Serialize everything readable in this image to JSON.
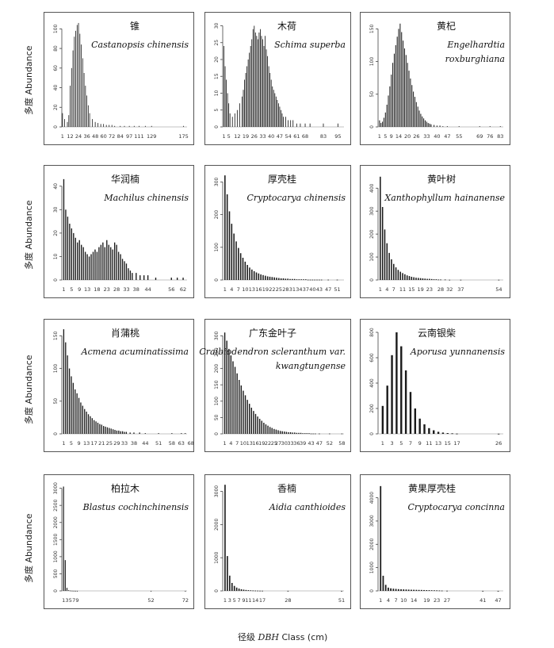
{
  "figure": {
    "ylabel": "多度 Abundance",
    "xlabel_prefix": "径级",
    "xlabel_italic": "DBH",
    "xlabel_suffix": "Class (cm)"
  },
  "chart_data": [
    {
      "type": "bar",
      "cn": "锥",
      "latin": [
        "Castanopsis chinensis"
      ],
      "ylim": [
        0,
        110
      ],
      "yticks": [
        0,
        20,
        40,
        60,
        80,
        100
      ],
      "xlim": [
        0,
        180
      ],
      "xticks": [
        1,
        12,
        24,
        36,
        48,
        60,
        72,
        84,
        97,
        111,
        129,
        175
      ],
      "x": [
        1,
        4,
        8,
        10,
        12,
        14,
        16,
        18,
        20,
        22,
        24,
        26,
        28,
        30,
        32,
        34,
        36,
        38,
        40,
        44,
        48,
        52,
        56,
        60,
        64,
        68,
        72,
        76,
        84,
        90,
        97,
        104,
        111,
        120,
        129,
        175
      ],
      "values": [
        14,
        8,
        5,
        12,
        42,
        60,
        78,
        92,
        98,
        104,
        106,
        95,
        84,
        70,
        55,
        42,
        32,
        22,
        14,
        8,
        5,
        4,
        3,
        3,
        2,
        2,
        2,
        1,
        1,
        1,
        1,
        1,
        1,
        1,
        1,
        1
      ]
    },
    {
      "type": "bar",
      "cn": "木荷",
      "latin": [
        "Schima superba"
      ],
      "ylim": [
        0,
        32
      ],
      "yticks": [
        0,
        5,
        10,
        15,
        20,
        25,
        30
      ],
      "xlim": [
        0,
        100
      ],
      "xticks": [
        1,
        5,
        12,
        19,
        26,
        33,
        40,
        47,
        54,
        61,
        68,
        83,
        95
      ],
      "x": [
        1,
        2,
        3,
        4,
        5,
        6,
        8,
        10,
        12,
        14,
        16,
        17,
        18,
        19,
        20,
        21,
        22,
        23,
        24,
        25,
        26,
        27,
        28,
        29,
        30,
        31,
        32,
        33,
        34,
        35,
        36,
        37,
        38,
        39,
        40,
        41,
        42,
        43,
        44,
        45,
        46,
        47,
        48,
        49,
        50,
        52,
        54,
        56,
        58,
        61,
        64,
        68,
        72,
        83,
        95
      ],
      "values": [
        24,
        18,
        14,
        10,
        7,
        4,
        3,
        4,
        5,
        7,
        9,
        11,
        14,
        16,
        18,
        20,
        22,
        24,
        26,
        29,
        30,
        28,
        27,
        26,
        28,
        29,
        27,
        26,
        24,
        27,
        23,
        21,
        18,
        16,
        14,
        12,
        11,
        10,
        9,
        8,
        7,
        6,
        5,
        4,
        3,
        3,
        2,
        2,
        2,
        1,
        1,
        1,
        1,
        1,
        1
      ]
    },
    {
      "type": "bar",
      "cn": "黄杞",
      "latin": [
        "Engelhardtia",
        "roxburghiana"
      ],
      "ylim": [
        0,
        165
      ],
      "yticks": [
        0,
        50,
        100,
        150
      ],
      "xlim": [
        0,
        85
      ],
      "xticks": [
        1,
        5,
        9,
        14,
        20,
        26,
        33,
        40,
        47,
        55,
        69,
        76,
        83
      ],
      "x": [
        1,
        2,
        3,
        4,
        5,
        6,
        7,
        8,
        9,
        10,
        11,
        12,
        13,
        14,
        15,
        16,
        17,
        18,
        19,
        20,
        21,
        22,
        23,
        24,
        25,
        26,
        27,
        28,
        29,
        30,
        31,
        32,
        33,
        34,
        35,
        36,
        38,
        40,
        42,
        44,
        47,
        55,
        69,
        76,
        83
      ],
      "values": [
        10,
        6,
        8,
        14,
        22,
        34,
        48,
        62,
        80,
        98,
        112,
        125,
        138,
        150,
        158,
        145,
        132,
        120,
        110,
        98,
        86,
        74,
        64,
        54,
        46,
        38,
        31,
        25,
        20,
        16,
        13,
        10,
        8,
        6,
        5,
        4,
        3,
        2,
        2,
        1,
        1,
        1,
        1,
        1,
        1
      ]
    },
    {
      "type": "bar",
      "cn": "华润楠",
      "latin": [
        "Machilus chinensis"
      ],
      "ylim": [
        0,
        46
      ],
      "yticks": [
        0,
        10,
        20,
        30,
        40
      ],
      "xlim": [
        0,
        64
      ],
      "xticks": [
        1,
        5,
        9,
        13,
        18,
        23,
        28,
        33,
        38,
        44,
        56,
        62
      ],
      "x": [
        1,
        2,
        3,
        4,
        5,
        6,
        7,
        8,
        9,
        10,
        11,
        12,
        13,
        14,
        15,
        16,
        17,
        18,
        19,
        20,
        21,
        22,
        23,
        24,
        25,
        26,
        27,
        28,
        29,
        30,
        31,
        32,
        33,
        34,
        35,
        36,
        38,
        40,
        42,
        44,
        48,
        56,
        59,
        62
      ],
      "values": [
        43,
        30,
        27,
        24,
        22,
        20,
        18,
        16,
        17,
        15,
        14,
        12,
        11,
        10,
        11,
        12,
        13,
        12,
        14,
        15,
        16,
        14,
        17,
        15,
        14,
        13,
        16,
        15,
        12,
        11,
        9,
        8,
        7,
        5,
        4,
        3,
        3,
        2,
        2,
        2,
        1,
        1,
        1,
        1
      ]
    },
    {
      "type": "bar",
      "cn": "厚壳桂",
      "latin": [
        "Cryptocarya chinensis"
      ],
      "ylim": [
        0,
        330
      ],
      "yticks": [
        0,
        100,
        200,
        300
      ],
      "xlim": [
        0,
        54
      ],
      "xticks": [
        1,
        4,
        7,
        10,
        13,
        16,
        19,
        22,
        25,
        28,
        31,
        34,
        37,
        40,
        43,
        47,
        51
      ],
      "x": [
        1,
        2,
        3,
        4,
        5,
        6,
        7,
        8,
        9,
        10,
        11,
        12,
        13,
        14,
        15,
        16,
        17,
        18,
        19,
        20,
        21,
        22,
        23,
        24,
        25,
        26,
        27,
        28,
        29,
        30,
        31,
        32,
        33,
        34,
        35,
        36,
        37,
        38,
        39,
        40,
        41,
        42,
        43,
        44,
        47,
        51
      ],
      "values": [
        320,
        262,
        210,
        172,
        142,
        118,
        98,
        82,
        68,
        56,
        46,
        38,
        32,
        27,
        23,
        20,
        17,
        15,
        13,
        11,
        10,
        9,
        8,
        7,
        6,
        5,
        5,
        4,
        4,
        3,
        3,
        3,
        2,
        2,
        2,
        2,
        2,
        1,
        1,
        1,
        1,
        1,
        1,
        1,
        1,
        1
      ]
    },
    {
      "type": "bar",
      "cn": "黄叶树",
      "latin": [
        "Xanthophyllum hainanense"
      ],
      "ylim": [
        0,
        470
      ],
      "yticks": [
        0,
        100,
        200,
        300,
        400
      ],
      "xlim": [
        0,
        56
      ],
      "xticks": [
        1,
        4,
        7,
        11,
        15,
        19,
        23,
        28,
        32,
        37,
        54
      ],
      "x": [
        1,
        2,
        3,
        4,
        5,
        6,
        7,
        8,
        9,
        10,
        11,
        12,
        13,
        14,
        15,
        16,
        17,
        18,
        19,
        20,
        21,
        22,
        23,
        24,
        25,
        26,
        27,
        28,
        30,
        32,
        37,
        54
      ],
      "values": [
        450,
        318,
        220,
        160,
        118,
        90,
        70,
        55,
        44,
        36,
        30,
        25,
        20,
        17,
        14,
        12,
        10,
        9,
        8,
        7,
        6,
        5,
        5,
        4,
        3,
        3,
        2,
        2,
        2,
        1,
        1,
        1
      ]
    },
    {
      "type": "bar",
      "cn": "肖蒲桃",
      "latin": [
        "Acmena acuminatissima"
      ],
      "ylim": [
        0,
        165
      ],
      "yticks": [
        0,
        50,
        100,
        150
      ],
      "xlim": [
        0,
        66
      ],
      "xticks": [
        1,
        5,
        9,
        13,
        17,
        21,
        25,
        29,
        33,
        38,
        44,
        51,
        58,
        63,
        68
      ],
      "x": [
        1,
        2,
        3,
        4,
        5,
        6,
        7,
        8,
        9,
        10,
        11,
        12,
        13,
        14,
        15,
        16,
        17,
        18,
        19,
        20,
        21,
        22,
        23,
        24,
        25,
        26,
        27,
        28,
        29,
        30,
        31,
        32,
        33,
        34,
        36,
        38,
        41,
        44,
        51,
        58,
        63,
        65
      ],
      "values": [
        160,
        140,
        120,
        100,
        88,
        78,
        68,
        62,
        55,
        48,
        43,
        38,
        34,
        30,
        27,
        24,
        21,
        19,
        17,
        15,
        14,
        12,
        11,
        10,
        9,
        8,
        7,
        6,
        5,
        5,
        4,
        4,
        3,
        3,
        2,
        2,
        2,
        1,
        1,
        1,
        1,
        1
      ]
    },
    {
      "type": "bar",
      "cn": "广东金叶子",
      "latin": [
        "Craibiodendron scleranthum var.",
        "kwangtungense"
      ],
      "ylim": [
        0,
        330
      ],
      "yticks": [
        0,
        50,
        100,
        150,
        200,
        250,
        300
      ],
      "xlim": [
        0,
        59
      ],
      "xticks": [
        1,
        4,
        7,
        10,
        13,
        16,
        19,
        22,
        25,
        27,
        30,
        33,
        36,
        39,
        43,
        47,
        52,
        58
      ],
      "x": [
        1,
        2,
        3,
        4,
        5,
        6,
        7,
        8,
        9,
        10,
        11,
        12,
        13,
        14,
        15,
        16,
        17,
        18,
        19,
        20,
        21,
        22,
        23,
        24,
        25,
        26,
        27,
        28,
        29,
        30,
        31,
        32,
        33,
        34,
        35,
        36,
        37,
        38,
        39,
        40,
        41,
        42,
        43,
        44,
        45,
        47,
        52,
        58
      ],
      "values": [
        310,
        285,
        260,
        240,
        222,
        205,
        185,
        165,
        148,
        132,
        118,
        104,
        92,
        80,
        70,
        61,
        53,
        46,
        40,
        34,
        29,
        25,
        21,
        18,
        15,
        13,
        11,
        9,
        8,
        7,
        6,
        5,
        5,
        4,
        4,
        3,
        3,
        3,
        2,
        2,
        2,
        2,
        1,
        1,
        1,
        1,
        1,
        1
      ]
    },
    {
      "type": "bar",
      "cn": "云南银柴",
      "latin": [
        "Aporusa yunnanensis"
      ],
      "ylim": [
        0,
        850
      ],
      "yticks": [
        0,
        200,
        400,
        600,
        800
      ],
      "xlim": [
        0,
        27
      ],
      "xticks": [
        1,
        3,
        5,
        7,
        9,
        11,
        13,
        15,
        17,
        26
      ],
      "x": [
        1,
        2,
        3,
        4,
        5,
        6,
        7,
        8,
        9,
        10,
        11,
        12,
        13,
        14,
        15,
        16,
        17,
        26
      ],
      "values": [
        220,
        380,
        620,
        800,
        690,
        500,
        330,
        200,
        120,
        75,
        45,
        28,
        16,
        10,
        6,
        4,
        2,
        1
      ]
    },
    {
      "type": "bar",
      "cn": "柏拉木",
      "latin": [
        "Blastus cochinchinensis"
      ],
      "ylim": [
        0,
        3200
      ],
      "yticks": [
        0,
        500,
        1000,
        1500,
        2000,
        2500,
        3000
      ],
      "xlim": [
        0,
        73
      ],
      "xticks": [
        1,
        3,
        5,
        7,
        9,
        52,
        72
      ],
      "x": [
        1,
        2,
        3,
        4,
        5,
        6,
        7,
        8,
        9,
        52,
        72
      ],
      "values": [
        3050,
        900,
        90,
        20,
        10,
        6,
        4,
        3,
        2,
        1,
        1
      ]
    },
    {
      "type": "bar",
      "cn": "香楠",
      "latin": [
        "Aidia canthioides"
      ],
      "ylim": [
        0,
        3300
      ],
      "yticks": [
        0,
        1000,
        2000,
        3000
      ],
      "xlim": [
        0,
        52
      ],
      "xticks": [
        1,
        3,
        5,
        7,
        9,
        11,
        14,
        17,
        28,
        51
      ],
      "x": [
        1,
        2,
        3,
        4,
        5,
        6,
        7,
        8,
        9,
        10,
        11,
        12,
        13,
        14,
        15,
        16,
        17,
        28,
        51
      ],
      "values": [
        3200,
        1050,
        460,
        240,
        150,
        100,
        70,
        50,
        38,
        28,
        22,
        17,
        13,
        10,
        8,
        6,
        5,
        2,
        1
      ]
    },
    {
      "type": "bar",
      "cn": "黄果厚壳桂",
      "latin": [
        "Cryptocarya concinna"
      ],
      "ylim": [
        0,
        4700
      ],
      "yticks": [
        0,
        1000,
        2000,
        3000,
        4000
      ],
      "xlim": [
        0,
        49
      ],
      "xticks": [
        1,
        4,
        7,
        10,
        14,
        19,
        23,
        27,
        41,
        47
      ],
      "x": [
        1,
        2,
        3,
        4,
        5,
        6,
        7,
        8,
        9,
        10,
        11,
        12,
        13,
        14,
        15,
        16,
        17,
        18,
        19,
        20,
        21,
        22,
        23,
        24,
        25,
        27,
        41,
        47
      ],
      "values": [
        4500,
        650,
        260,
        140,
        110,
        95,
        85,
        75,
        70,
        65,
        60,
        55,
        50,
        48,
        45,
        42,
        40,
        36,
        33,
        30,
        28,
        25,
        22,
        18,
        14,
        8,
        2,
        1
      ]
    }
  ]
}
